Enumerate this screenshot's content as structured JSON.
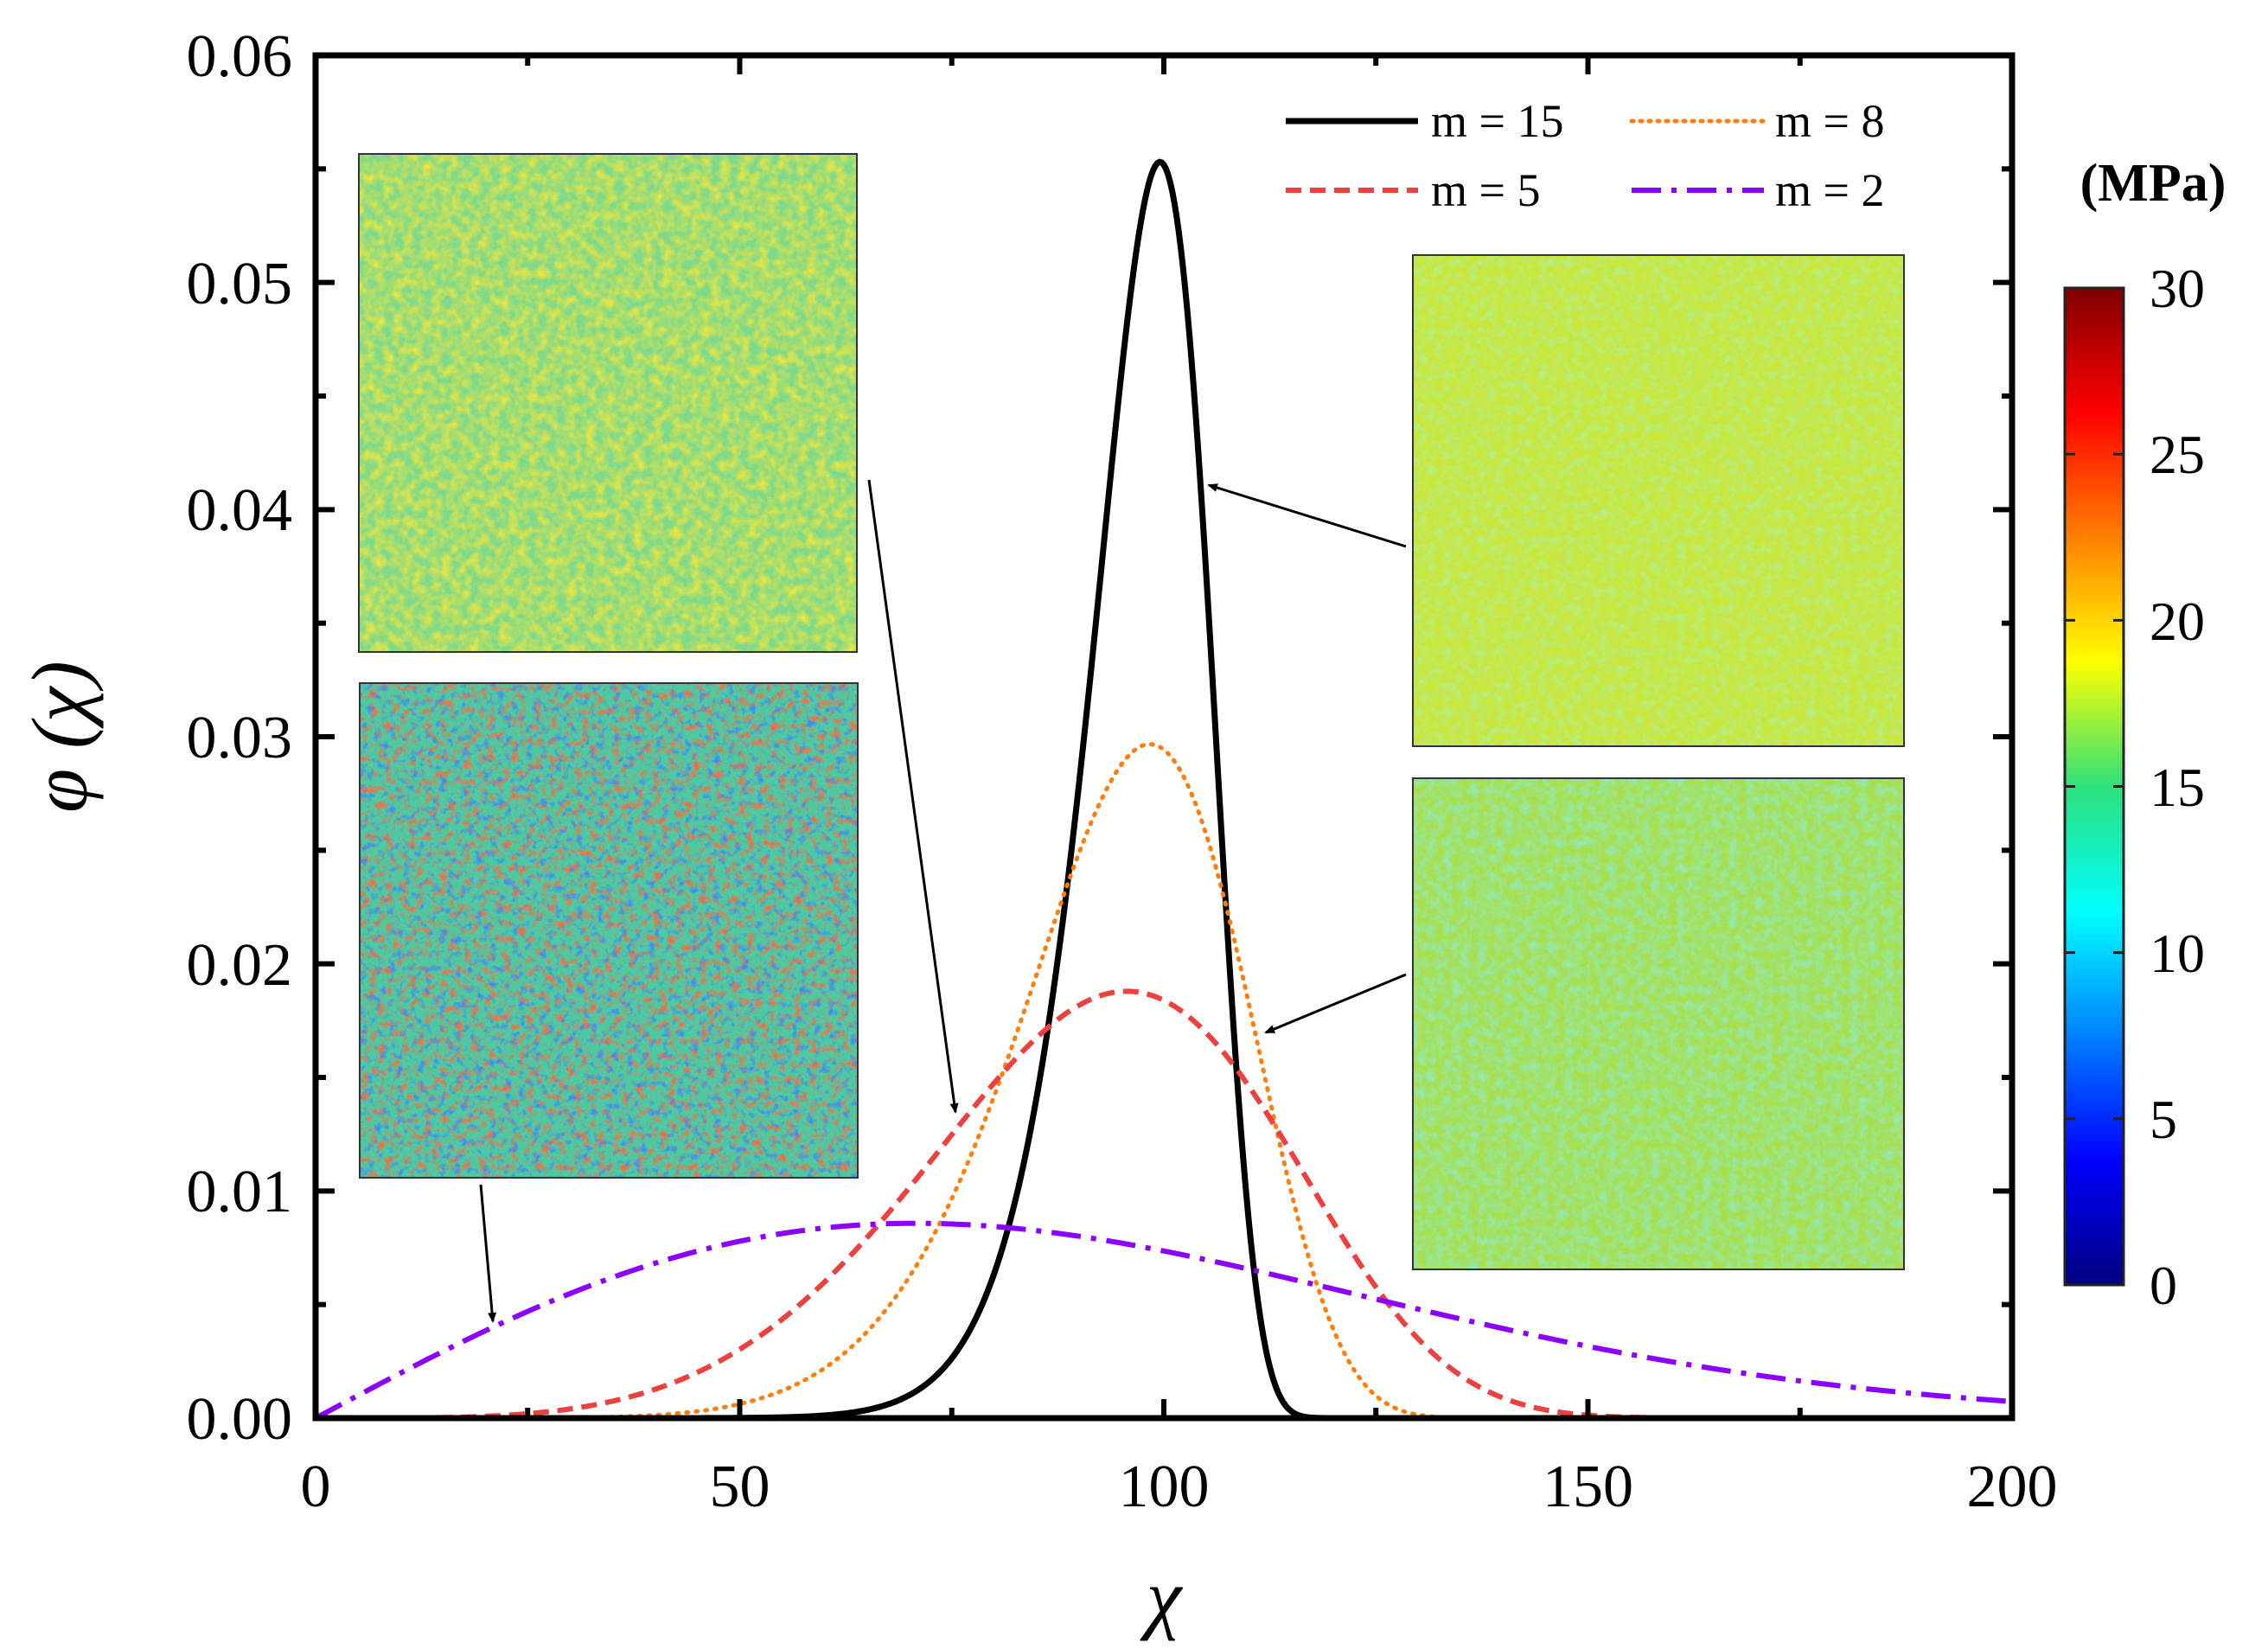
{
  "chart_data": {
    "type": "line",
    "title": "",
    "xlabel": "χ",
    "ylabel": "φ (χ)",
    "xlim": [
      0,
      200
    ],
    "ylim": [
      0,
      0.06
    ],
    "x_ticks": [
      "0",
      "50",
      "100",
      "150",
      "200"
    ],
    "y_ticks": [
      "0.00",
      "0.01",
      "0.02",
      "0.03",
      "0.04",
      "0.05",
      "0.06"
    ],
    "series": [
      {
        "name": "m = 15",
        "color": "#000000",
        "style": "solid",
        "weibull_m": 15,
        "weibull_scale": 100
      },
      {
        "name": "m = 8",
        "color": "#ff7f0e",
        "style": "dotted",
        "weibull_m": 8,
        "weibull_scale": 100
      },
      {
        "name": "m = 5",
        "color": "#ef4040",
        "style": "dashed",
        "weibull_m": 5,
        "weibull_scale": 100
      },
      {
        "name": "m = 2",
        "color": "#8b00ff",
        "style": "dashdot",
        "weibull_m": 2,
        "weibull_scale": 100
      }
    ],
    "legend_placement": "top-right",
    "colorbar": {
      "unit": "(MPa)",
      "min": 0,
      "max": 30,
      "ticks": [
        "0",
        "5",
        "10",
        "15",
        "20",
        "25",
        "30"
      ],
      "colormap": "jet"
    },
    "insets": [
      {
        "label": "m = 5 field",
        "points_to": "m = 5",
        "target": [
          75,
          0.0125
        ]
      },
      {
        "label": "m = 2 field",
        "points_to": "m = 2",
        "target": [
          21,
          0.0041
        ]
      },
      {
        "label": "m = 15 field",
        "points_to": "m = 15",
        "target": [
          105,
          0.0415
        ]
      },
      {
        "label": "m = 8 field",
        "points_to": "m = 8",
        "target": [
          111,
          0.0171
        ]
      }
    ]
  }
}
